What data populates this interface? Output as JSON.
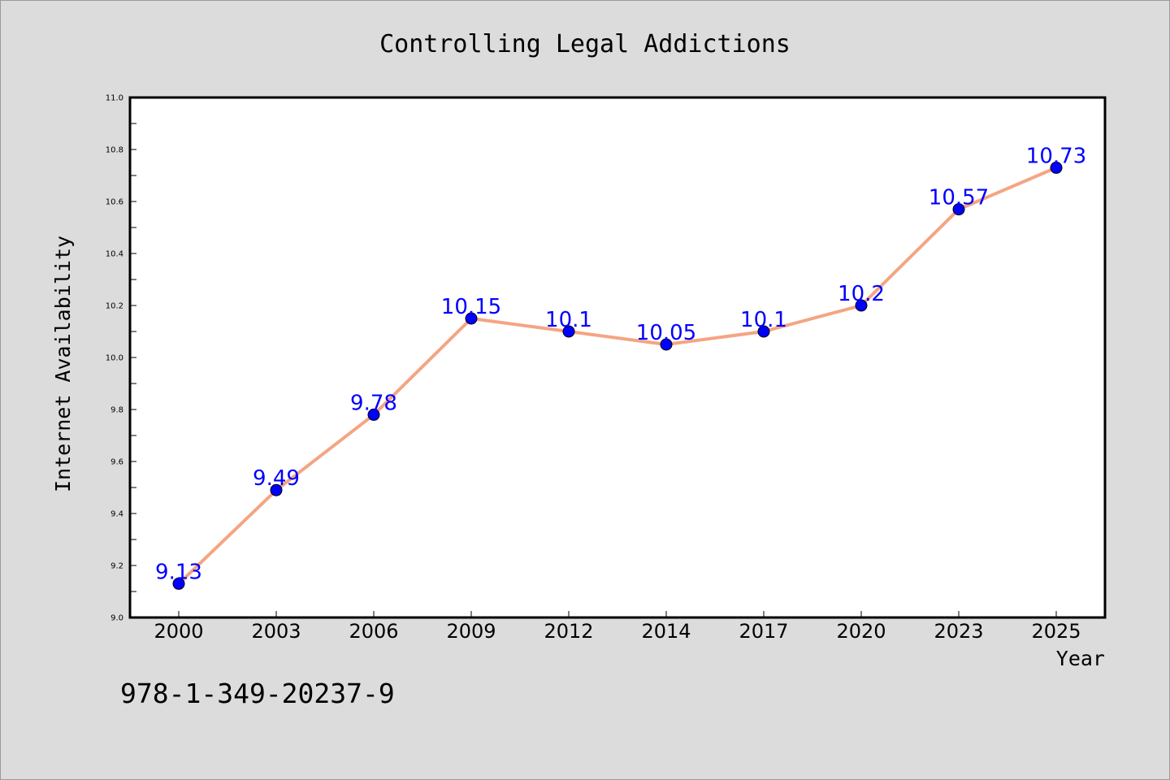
{
  "chart_data": {
    "type": "line",
    "title": "Controlling Legal Addictions",
    "xlabel": "Year",
    "ylabel": "Internet Availability",
    "categories": [
      "2000",
      "2003",
      "2006",
      "2009",
      "2012",
      "2014",
      "2017",
      "2020",
      "2023",
      "2025"
    ],
    "series": [
      {
        "values": [
          9.13,
          9.49,
          9.78,
          10.15,
          10.1,
          10.05,
          10.1,
          10.2,
          10.57,
          10.73
        ],
        "labels": [
          "9.13",
          "9.49",
          "9.78",
          "10.15",
          "10.1",
          "10.05",
          "10.1",
          "10.2",
          "10.57",
          "10.73"
        ],
        "line_color": "#f4a582",
        "marker_color": "#0000ff"
      }
    ],
    "ylim": [
      9.0,
      11.0
    ],
    "yticks": [
      "9.0",
      "9.2",
      "9.4",
      "9.6",
      "9.8",
      "10.0",
      "10.2",
      "10.4",
      "10.6",
      "10.8",
      "11.0"
    ],
    "grid": false,
    "data_label_color": "#0000ff",
    "background_color": "#dcdcdc",
    "plot_background_color": "#ffffff"
  },
  "footer_text": "978-1-349-20237-9"
}
